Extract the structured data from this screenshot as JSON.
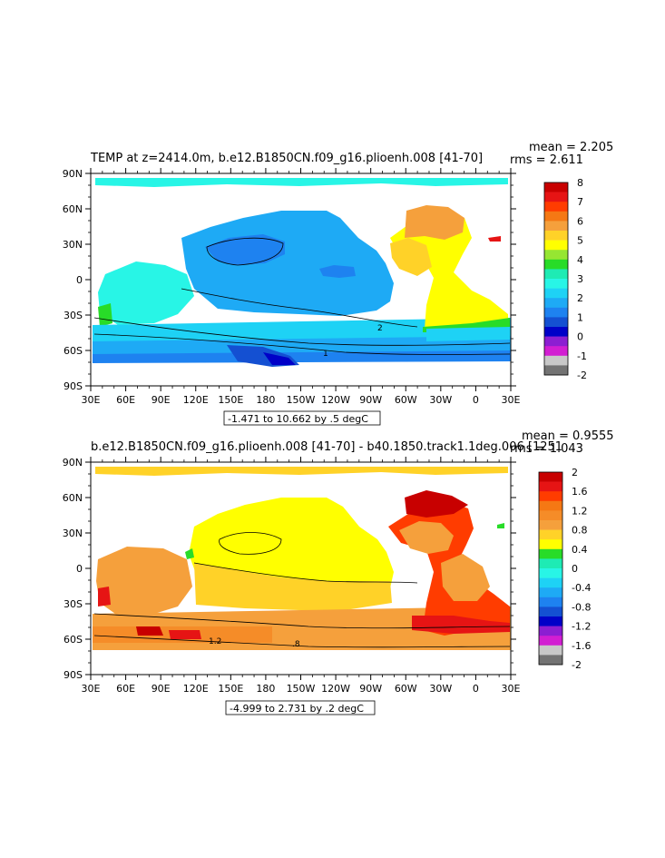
{
  "chart_data": [
    {
      "type": "heatmap",
      "title_left": "TEMP at z=2414.0m, b.e12.B1850CN.f09_g16.plioenh.008 [41-70]",
      "stats": {
        "mean_label": "mean = 2.205",
        "rms_label": "rms = 2.611"
      },
      "x_ticks": [
        "30E",
        "60E",
        "90E",
        "120E",
        "150E",
        "180",
        "150W",
        "120W",
        "90W",
        "60W",
        "30W",
        "0",
        "30E"
      ],
      "y_ticks": [
        "90N",
        "60N",
        "30N",
        "0",
        "30S",
        "60S",
        "90S"
      ],
      "contour_info": "-1.471 to 10.662 by .5 degC",
      "colorbar": {
        "labels": [
          "8",
          "7",
          "6",
          "5",
          "4",
          "3",
          "2",
          "1",
          "0",
          "-1",
          "-2"
        ],
        "colors": [
          "#c80000",
          "#e61414",
          "#ff3c00",
          "#f57814",
          "#f5a03c",
          "#ffd228",
          "#ffff00",
          "#96e632",
          "#28dc28",
          "#1eebb4",
          "#28f5e6",
          "#1ed2f5",
          "#1eaaf5",
          "#1e82f0",
          "#1450d2",
          "#0000c8",
          "#8c1ed2",
          "#d21ed2",
          "#c8c8c8",
          "#737373"
        ]
      },
      "contour_labels": [
        "2",
        "1"
      ]
    },
    {
      "type": "heatmap",
      "title_left": "b.e12.B1850CN.f09_g16.plioenh.008 [41-70] - b40.1850.track1.1deg.006 [1251",
      "stats": {
        "mean_label": "mean = 0.9555",
        "rms_label": "rms = 1.043"
      },
      "x_ticks": [
        "30E",
        "60E",
        "90E",
        "120E",
        "150E",
        "180",
        "150W",
        "120W",
        "90W",
        "60W",
        "30W",
        "0",
        "30E"
      ],
      "y_ticks": [
        "90N",
        "60N",
        "30N",
        "0",
        "30S",
        "60S",
        "90S"
      ],
      "contour_info": "-4.999 to 2.731 by .2 degC",
      "colorbar": {
        "labels": [
          "2",
          "1.6",
          "1.2",
          "0.8",
          "0.4",
          "0",
          "-0.4",
          "-0.8",
          "-1.2",
          "-1.6",
          "-2"
        ],
        "colors": [
          "#c80000",
          "#e61414",
          "#ff3c00",
          "#f57814",
          "#f58c28",
          "#f5a03c",
          "#ffd228",
          "#ffff00",
          "#28dc28",
          "#1eebb4",
          "#28f5e6",
          "#1ed2f5",
          "#1eaaf5",
          "#1e82f0",
          "#1450d2",
          "#0000c8",
          "#8c1ed2",
          "#d21ed2",
          "#c8c8c8",
          "#737373"
        ]
      },
      "contour_labels": [
        "1.2",
        ".8"
      ]
    }
  ]
}
